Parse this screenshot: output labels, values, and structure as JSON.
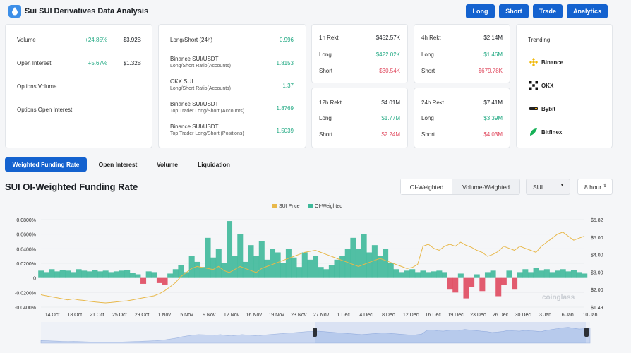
{
  "app": {
    "title": "Sui SUI Derivatives Data Analysis"
  },
  "nav": {
    "long": "Long",
    "short": "Short",
    "trade": "Trade",
    "analytics": "Analytics"
  },
  "overview": [
    {
      "label": "Volume",
      "change": "+24.85%",
      "value": "$3.92B"
    },
    {
      "label": "Open Interest",
      "change": "+5.67%",
      "value": "$1.32B"
    },
    {
      "label": "Options Volume",
      "change": "",
      "value": ""
    },
    {
      "label": "Options Open Interest",
      "change": "",
      "value": ""
    }
  ],
  "ratios": [
    {
      "label": "Long/Short (24h)",
      "sub": "",
      "value": "0.996"
    },
    {
      "label": "Binance SUI/USDT",
      "sub": "Long/Short Ratio(Accounts)",
      "value": "1.8153"
    },
    {
      "label": "OKX SUI",
      "sub": "Long/Short Ratio(Accounts)",
      "value": "1.37"
    },
    {
      "label": "Binance SUI/USDT",
      "sub": "Top Trader Long/Short (Accounts)",
      "value": "1.8769"
    },
    {
      "label": "Binance SUI/USDT",
      "sub": "Top Trader Long/Short (Positions)",
      "value": "1.5039"
    }
  ],
  "rekt": [
    {
      "period": "1h Rekt",
      "total": "$452.57K",
      "long_label": "Long",
      "long": "$422.02K",
      "short_label": "Short",
      "short": "$30.54K"
    },
    {
      "period": "4h Rekt",
      "total": "$2.14M",
      "long_label": "Long",
      "long": "$1.46M",
      "short_label": "Short",
      "short": "$679.78K"
    },
    {
      "period": "12h Rekt",
      "total": "$4.01M",
      "long_label": "Long",
      "long": "$1.77M",
      "short_label": "Short",
      "short": "$2.24M"
    },
    {
      "period": "24h Rekt",
      "total": "$7.41M",
      "long_label": "Long",
      "long": "$3.39M",
      "short_label": "Short",
      "short": "$4.03M"
    }
  ],
  "trending": {
    "title": "Trending",
    "items": [
      {
        "name": "Binance",
        "icon": "binance-icon"
      },
      {
        "name": "OKX",
        "icon": "okx-icon"
      },
      {
        "name": "Bybit",
        "icon": "bybit-icon"
      },
      {
        "name": "Bitfinex",
        "icon": "bitfinex-icon"
      }
    ]
  },
  "tabs": [
    "Weighted Funding Rate",
    "Open Interest",
    "Volume",
    "Liquidation"
  ],
  "section": {
    "title": "SUI OI-Weighted Funding Rate"
  },
  "controls": {
    "oi_weighted": "OI-Weighted",
    "volume_weighted": "Volume-Weighted",
    "symbol": "SUI",
    "interval": "8 hour"
  },
  "colors": {
    "accent": "#1462cf",
    "positive": "#21a983",
    "negative": "#e04a5f",
    "price_line": "#e8b84a",
    "area_fill": "#3fb99a"
  },
  "chart_data": {
    "type": "area",
    "legend": [
      "SUI Price",
      "OI-Weighted"
    ],
    "legend_position": "top-center",
    "watermark": "coinglass",
    "x_ticks": [
      "14 Oct",
      "18 Oct",
      "21 Oct",
      "25 Oct",
      "29 Oct",
      "1 Nov",
      "5 Nov",
      "9 Nov",
      "12 Nov",
      "16 Nov",
      "19 Nov",
      "23 Nov",
      "27 Nov",
      "1 Dec",
      "4 Dec",
      "8 Dec",
      "12 Dec",
      "16 Dec",
      "19 Dec",
      "23 Dec",
      "26 Dec",
      "30 Dec",
      "3 Jan",
      "6 Jan",
      "10 Jan"
    ],
    "y_left_ticks": [
      "0.0800%",
      "0.0600%",
      "0.0400%",
      "0.0200%",
      "0",
      "-0.0200%",
      "-0.0400%"
    ],
    "y_left_range": [
      -0.04,
      0.08
    ],
    "y_right_ticks": [
      "$5.82",
      "$5.00",
      "$4.00",
      "$3.00",
      "$2.00",
      "$1.49"
    ],
    "y_right_range": [
      1.49,
      5.82
    ],
    "grid": true,
    "series": [
      {
        "name": "OI-Weighted",
        "unit": "%",
        "values": [
          0.01,
          0.008,
          0.012,
          0.009,
          0.011,
          0.01,
          0.008,
          0.012,
          0.01,
          0.009,
          0.011,
          0.009,
          0.01,
          0.008,
          0.009,
          0.01,
          0.011,
          0.007,
          0.005,
          -0.008,
          0.009,
          0.008,
          -0.007,
          -0.009,
          0.006,
          0.012,
          0.018,
          0.008,
          0.03,
          0.022,
          0.015,
          0.055,
          0.028,
          0.04,
          0.02,
          0.078,
          0.03,
          0.06,
          0.022,
          0.045,
          0.03,
          0.05,
          0.025,
          0.04,
          0.035,
          0.02,
          0.04,
          0.028,
          0.015,
          0.035,
          0.025,
          0.03,
          0.015,
          0.012,
          0.018,
          0.025,
          0.03,
          0.04,
          0.055,
          0.04,
          0.06,
          0.035,
          0.045,
          0.03,
          0.04,
          0.02,
          0.012,
          0.008,
          0.01,
          0.012,
          0.008,
          0.01,
          0.008,
          0.009,
          0.01,
          0.008,
          -0.016,
          -0.02,
          0.006,
          -0.028,
          -0.012,
          0.005,
          -0.018,
          0.008,
          0.01,
          -0.025,
          -0.01,
          0.01,
          -0.016,
          0.008,
          0.012,
          0.008,
          0.014,
          0.01,
          0.012,
          0.008,
          0.01,
          0.012,
          0.009,
          0.011,
          0.008,
          0.006
        ]
      },
      {
        "name": "SUI Price",
        "unit": "$",
        "values": [
          2.1,
          2.05,
          2.0,
          1.95,
          1.9,
          1.85,
          1.9,
          1.85,
          1.82,
          1.78,
          1.75,
          1.72,
          1.7,
          1.72,
          1.75,
          1.78,
          1.8,
          1.85,
          1.9,
          1.95,
          2.0,
          2.05,
          2.15,
          2.3,
          2.5,
          2.7,
          3.0,
          3.2,
          3.4,
          3.5,
          3.45,
          3.4,
          3.35,
          3.5,
          3.3,
          3.2,
          3.35,
          3.5,
          3.4,
          3.3,
          3.2,
          3.4,
          3.5,
          3.6,
          3.7,
          3.8,
          3.9,
          4.0,
          4.1,
          4.2,
          4.25,
          4.3,
          4.2,
          4.1,
          4.0,
          3.9,
          3.8,
          3.7,
          3.6,
          3.5,
          3.6,
          3.7,
          3.8,
          3.9,
          3.8,
          3.7,
          3.6,
          3.5,
          3.4,
          3.45,
          3.6,
          4.5,
          4.6,
          4.4,
          4.3,
          4.5,
          4.6,
          4.5,
          4.7,
          4.55,
          4.45,
          4.3,
          4.2,
          4.0,
          4.1,
          4.25,
          4.5,
          4.4,
          4.3,
          4.5,
          4.4,
          4.3,
          4.2,
          4.5,
          4.7,
          4.9,
          5.1,
          5.2,
          5.0,
          4.8,
          4.9,
          5.0
        ]
      }
    ]
  }
}
